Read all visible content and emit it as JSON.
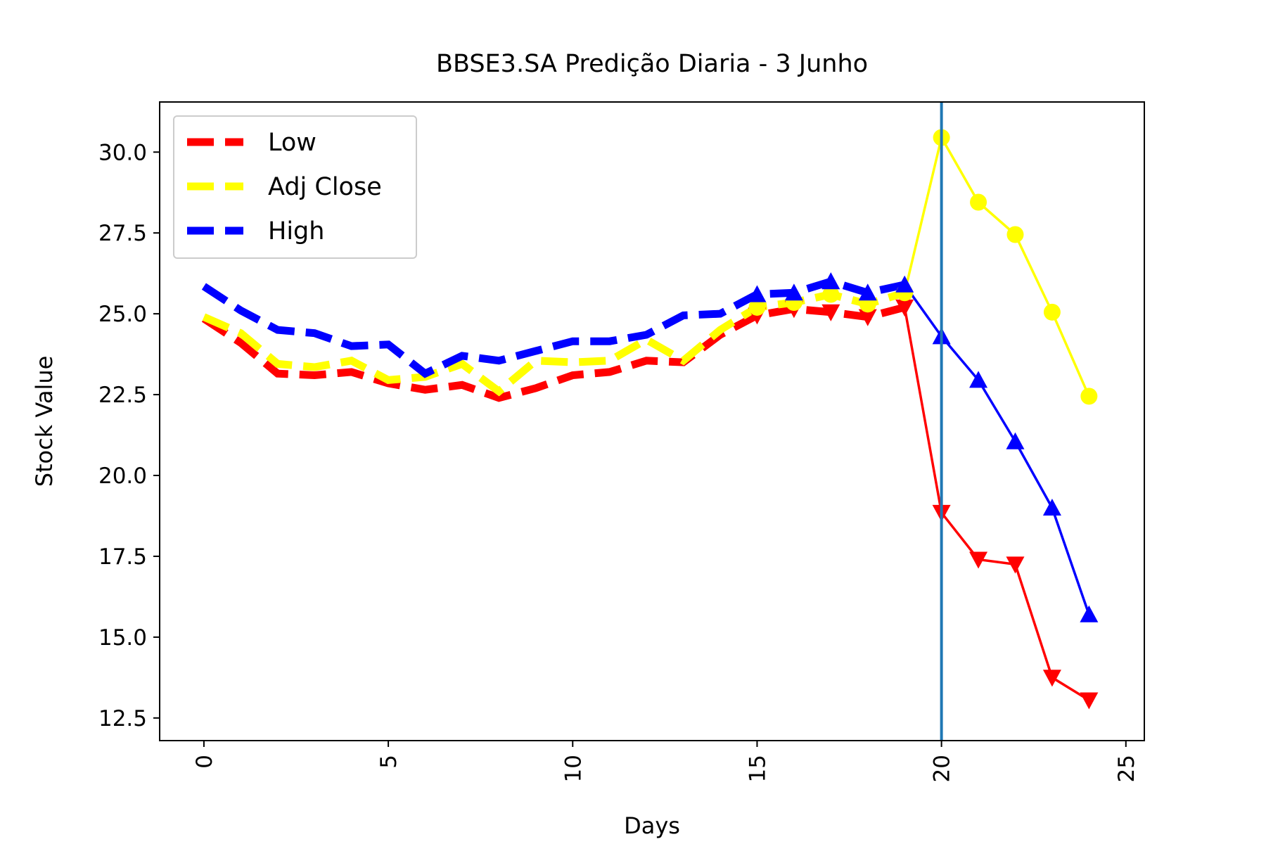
{
  "chart_data": {
    "type": "line",
    "title": "BBSE3.SA Predição Diaria - 3 Junho",
    "xlabel": "Days",
    "ylabel": "Stock Value",
    "xlim": [
      -1.2,
      25.5
    ],
    "ylim": [
      11.8,
      31.55
    ],
    "xticks": [
      0,
      5,
      10,
      15,
      20,
      25
    ],
    "xtick_labels": [
      "0",
      "5",
      "10",
      "15",
      "20",
      "25"
    ],
    "yticks": [
      12.5,
      15.0,
      17.5,
      20.0,
      22.5,
      25.0,
      27.5,
      30.0
    ],
    "ytick_labels": [
      "12.5",
      "15.0",
      "17.5",
      "20.0",
      "22.5",
      "25.0",
      "27.5",
      "30.0"
    ],
    "xtick_rotation": 90,
    "grid": false,
    "legend_position": "top-left",
    "vline_x": 20,
    "vline_color": "#1f77b4",
    "series": [
      {
        "name": "Low",
        "color": "#ff0000",
        "historical_x": [
          0,
          1,
          2,
          3,
          4,
          5,
          6,
          7,
          8,
          9,
          10,
          11,
          12,
          13,
          14,
          15,
          16,
          17,
          18,
          19
        ],
        "historical_y": [
          24.85,
          24.1,
          23.15,
          23.1,
          23.2,
          22.85,
          22.65,
          22.8,
          22.4,
          22.7,
          23.1,
          23.2,
          23.55,
          23.5,
          24.35,
          24.95,
          25.15,
          25.05,
          24.9,
          25.2
        ],
        "predicted_x": [
          19,
          20,
          21,
          22,
          23,
          24
        ],
        "predicted_y": [
          25.2,
          18.85,
          17.4,
          17.25,
          13.75,
          13.05
        ],
        "marker": "triangle-down"
      },
      {
        "name": "Adj Close",
        "color": "#ffff00",
        "historical_x": [
          0,
          1,
          2,
          3,
          4,
          5,
          6,
          7,
          8,
          9,
          10,
          11,
          12,
          13,
          14,
          15,
          16,
          17,
          18,
          19
        ],
        "historical_y": [
          24.9,
          24.4,
          23.45,
          23.35,
          23.55,
          22.95,
          23.05,
          23.45,
          22.6,
          23.55,
          23.5,
          23.55,
          24.2,
          23.55,
          24.5,
          25.2,
          25.35,
          25.6,
          25.3,
          25.65
        ],
        "predicted_x": [
          19,
          20,
          21,
          22,
          23,
          24
        ],
        "predicted_y": [
          25.65,
          30.45,
          28.45,
          27.45,
          25.05,
          22.45
        ],
        "marker": "circle"
      },
      {
        "name": "High",
        "color": "#0000ff",
        "historical_x": [
          0,
          1,
          2,
          3,
          4,
          5,
          6,
          7,
          8,
          9,
          10,
          11,
          12,
          13,
          14,
          15,
          16,
          17,
          18,
          19
        ],
        "historical_y": [
          25.85,
          25.1,
          24.5,
          24.4,
          24.0,
          24.05,
          23.15,
          23.7,
          23.55,
          23.85,
          24.15,
          24.15,
          24.35,
          24.95,
          25.0,
          25.6,
          25.65,
          26.0,
          25.65,
          25.9
        ],
        "predicted_x": [
          19,
          20,
          21,
          22,
          23,
          24
        ],
        "predicted_y": [
          25.9,
          24.3,
          22.95,
          21.05,
          19.0,
          15.7
        ],
        "marker": "triangle-up"
      }
    ]
  }
}
